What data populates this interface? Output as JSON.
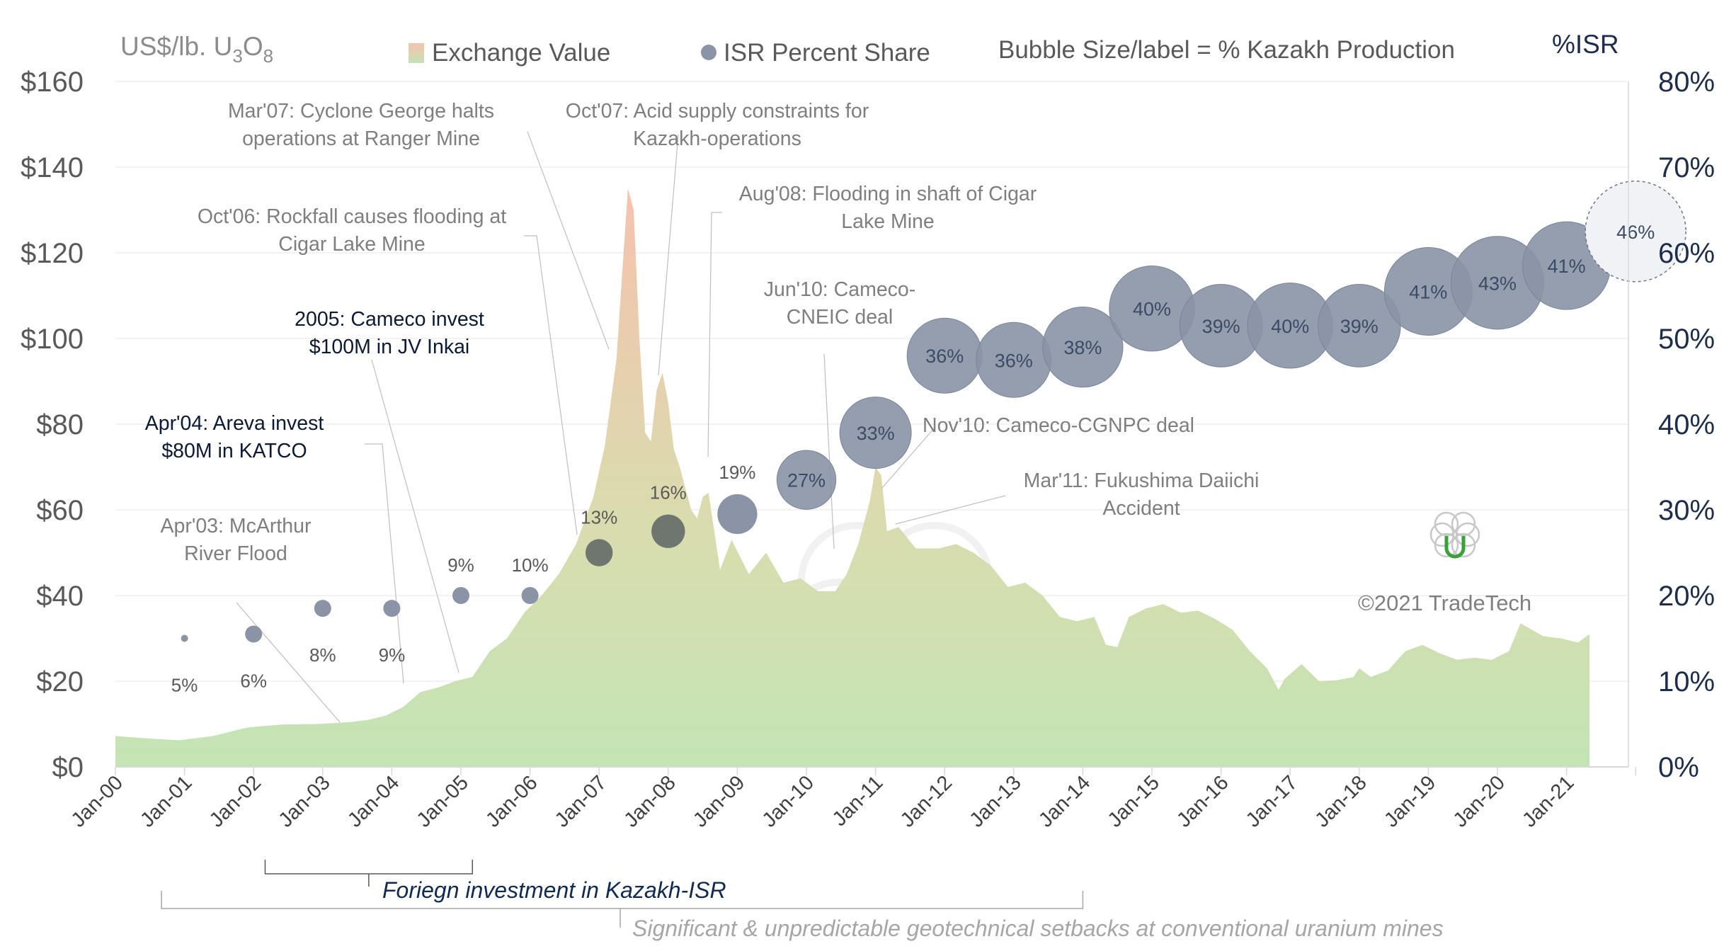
{
  "chart_data": {
    "type": "area",
    "y_axis_left": {
      "unit_prefix": "US$/lb. U",
      "sub1": "3",
      "mid": "O",
      "sub2": "8",
      "ylim": [
        0,
        160
      ],
      "ticks": [
        "$0",
        "$20",
        "$40",
        "$60",
        "$80",
        "$100",
        "$120",
        "$140",
        "$160"
      ]
    },
    "y_axis_right": {
      "label": "%ISR",
      "ylim": [
        0,
        80
      ],
      "ticks": [
        "0%",
        "10%",
        "20%",
        "30%",
        "40%",
        "50%",
        "60%",
        "70%",
        "80%"
      ]
    },
    "x_axis": {
      "start": "2000-01",
      "end": "2021-12",
      "ticks": [
        "Jan-00",
        "Jan-01",
        "Jan-02",
        "Jan-03",
        "Jan-04",
        "Jan-05",
        "Jan-06",
        "Jan-07",
        "Jan-08",
        "Jan-09",
        "Jan-10",
        "Jan-11",
        "Jan-12",
        "Jan-13",
        "Jan-14",
        "Jan-15",
        "Jan-16",
        "Jan-17",
        "Jan-18",
        "Jan-19",
        "Jan-20",
        "Jan-21"
      ]
    },
    "legend": {
      "exchange_value": "Exchange Value",
      "isr_share": "ISR Percent Share",
      "bubble_note": "Bubble Size/label = % Kazakh Production"
    },
    "colors": {
      "area_top": "#f6c2ae",
      "area_bottom": "#c3e4b4",
      "bubble": "#8a94a6",
      "bubble_stroke": "#6b7588",
      "grid": "#efefef",
      "axis_right": "#1f2d4d"
    },
    "exchange_value": [
      [
        "2000-01",
        7.2
      ],
      [
        "2000-06",
        6.7
      ],
      [
        "2000-12",
        6.2
      ],
      [
        "2001-06",
        7.2
      ],
      [
        "2001-12",
        9.2
      ],
      [
        "2002-06",
        9.9
      ],
      [
        "2002-12",
        10.0
      ],
      [
        "2003-06",
        10.5
      ],
      [
        "2003-09",
        11.0
      ],
      [
        "2003-12",
        12.0
      ],
      [
        "2004-03",
        14.0
      ],
      [
        "2004-06",
        17.5
      ],
      [
        "2004-09",
        18.5
      ],
      [
        "2004-12",
        20.0
      ],
      [
        "2005-03",
        21.0
      ],
      [
        "2005-06",
        27.0
      ],
      [
        "2005-09",
        30.0
      ],
      [
        "2005-12",
        36.0
      ],
      [
        "2006-03",
        40.0
      ],
      [
        "2006-06",
        45.0
      ],
      [
        "2006-09",
        52.0
      ],
      [
        "2006-12",
        63.0
      ],
      [
        "2007-02",
        75.0
      ],
      [
        "2007-04",
        95.0
      ],
      [
        "2007-05",
        115.0
      ],
      [
        "2007-06",
        135.0
      ],
      [
        "2007-07",
        130.0
      ],
      [
        "2007-08",
        100.0
      ],
      [
        "2007-09",
        78.0
      ],
      [
        "2007-10",
        76.0
      ],
      [
        "2007-11",
        88.0
      ],
      [
        "2007-12",
        92.0
      ],
      [
        "2008-01",
        85.0
      ],
      [
        "2008-02",
        74.0
      ],
      [
        "2008-03",
        70.0
      ],
      [
        "2008-04",
        65.0
      ],
      [
        "2008-05",
        60.0
      ],
      [
        "2008-06",
        58.0
      ],
      [
        "2008-07",
        63.0
      ],
      [
        "2008-08",
        64.0
      ],
      [
        "2008-09",
        55.0
      ],
      [
        "2008-10",
        46.0
      ],
      [
        "2008-12",
        53.0
      ],
      [
        "2009-03",
        45.0
      ],
      [
        "2009-06",
        50.0
      ],
      [
        "2009-09",
        43.0
      ],
      [
        "2009-12",
        44.0
      ],
      [
        "2010-03",
        41.0
      ],
      [
        "2010-06",
        41.0
      ],
      [
        "2010-08",
        45.0
      ],
      [
        "2010-10",
        52.0
      ],
      [
        "2010-12",
        62.0
      ],
      [
        "2011-01",
        70.0
      ],
      [
        "2011-02",
        68.0
      ],
      [
        "2011-03",
        55.0
      ],
      [
        "2011-05",
        56.0
      ],
      [
        "2011-08",
        51.0
      ],
      [
        "2011-12",
        51.0
      ],
      [
        "2012-03",
        52.0
      ],
      [
        "2012-06",
        50.0
      ],
      [
        "2012-09",
        47.0
      ],
      [
        "2012-12",
        42.0
      ],
      [
        "2013-03",
        43.0
      ],
      [
        "2013-06",
        40.0
      ],
      [
        "2013-09",
        35.0
      ],
      [
        "2013-12",
        34.0
      ],
      [
        "2014-03",
        35.0
      ],
      [
        "2014-05",
        28.5
      ],
      [
        "2014-07",
        28.0
      ],
      [
        "2014-09",
        35.0
      ],
      [
        "2014-12",
        37.0
      ],
      [
        "2015-03",
        38.0
      ],
      [
        "2015-06",
        36.0
      ],
      [
        "2015-09",
        36.5
      ],
      [
        "2015-12",
        34.5
      ],
      [
        "2016-03",
        32.0
      ],
      [
        "2016-06",
        27.0
      ],
      [
        "2016-09",
        23.0
      ],
      [
        "2016-11",
        18.0
      ],
      [
        "2016-12",
        20.5
      ],
      [
        "2017-03",
        24.0
      ],
      [
        "2017-06",
        20.0
      ],
      [
        "2017-09",
        20.2
      ],
      [
        "2017-12",
        21.0
      ],
      [
        "2018-01",
        23.0
      ],
      [
        "2018-03",
        21.0
      ],
      [
        "2018-06",
        22.5
      ],
      [
        "2018-09",
        27.0
      ],
      [
        "2018-12",
        28.5
      ],
      [
        "2019-03",
        26.5
      ],
      [
        "2019-06",
        25.0
      ],
      [
        "2019-09",
        25.5
      ],
      [
        "2019-12",
        25.0
      ],
      [
        "2020-03",
        27.0
      ],
      [
        "2020-05",
        33.5
      ],
      [
        "2020-09",
        30.5
      ],
      [
        "2020-12",
        30.0
      ],
      [
        "2021-03",
        29.0
      ],
      [
        "2021-05",
        31.0
      ]
    ],
    "isr_bubbles": [
      {
        "date": "2001-01",
        "isr": 15,
        "label": "5%",
        "kaz": 5,
        "pos": "below"
      },
      {
        "date": "2002-01",
        "isr": 15.5,
        "label": "6%",
        "kaz": 6,
        "pos": "below"
      },
      {
        "date": "2003-01",
        "isr": 18.5,
        "label": "8%",
        "kaz": 8,
        "pos": "below"
      },
      {
        "date": "2004-01",
        "isr": 18.5,
        "label": "9%",
        "kaz": 9,
        "pos": "below"
      },
      {
        "date": "2005-01",
        "isr": 20,
        "label": "9%",
        "kaz": 9,
        "pos": "above"
      },
      {
        "date": "2006-01",
        "isr": 20,
        "label": "10%",
        "kaz": 10,
        "pos": "above"
      },
      {
        "date": "2007-01",
        "isr": 25,
        "label": "13%",
        "kaz": 13,
        "pos": "above"
      },
      {
        "date": "2008-01",
        "isr": 27.5,
        "label": "16%",
        "kaz": 16,
        "pos": "above"
      },
      {
        "date": "2009-01",
        "isr": 29.5,
        "label": "19%",
        "kaz": 19,
        "pos": "above"
      },
      {
        "date": "2010-01",
        "isr": 33.5,
        "label": "27%",
        "kaz": 27,
        "pos": "inside"
      },
      {
        "date": "2011-01",
        "isr": 39,
        "label": "33%",
        "kaz": 33,
        "pos": "inside"
      },
      {
        "date": "2012-01",
        "isr": 48,
        "label": "36%",
        "kaz": 36,
        "pos": "inside"
      },
      {
        "date": "2013-01",
        "isr": 47.5,
        "label": "36%",
        "kaz": 36,
        "pos": "inside"
      },
      {
        "date": "2014-01",
        "isr": 49,
        "label": "38%",
        "kaz": 38,
        "pos": "inside"
      },
      {
        "date": "2015-01",
        "isr": 53.5,
        "label": "40%",
        "kaz": 40,
        "pos": "inside"
      },
      {
        "date": "2016-01",
        "isr": 51.5,
        "label": "39%",
        "kaz": 39,
        "pos": "inside"
      },
      {
        "date": "2017-01",
        "isr": 51.5,
        "label": "40%",
        "kaz": 40,
        "pos": "inside"
      },
      {
        "date": "2018-01",
        "isr": 51.5,
        "label": "39%",
        "kaz": 39,
        "pos": "inside"
      },
      {
        "date": "2019-01",
        "isr": 55.5,
        "label": "41%",
        "kaz": 41,
        "pos": "inside"
      },
      {
        "date": "2020-01",
        "isr": 56.5,
        "label": "43%",
        "kaz": 43,
        "pos": "inside"
      },
      {
        "date": "2021-01",
        "isr": 58.5,
        "label": "41%",
        "kaz": 41,
        "pos": "inside"
      },
      {
        "date": "2022-01",
        "isr": 62.5,
        "label": "46%",
        "kaz": 46,
        "pos": "inside",
        "projected": true
      }
    ],
    "annotations": [
      {
        "lines": [
          "Apr'03: McArthur",
          "River Flood"
        ],
        "style": "grey",
        "anchor_date": "2003-04",
        "anchor_value": 10
      },
      {
        "lines": [
          "Apr'04: Areva invest",
          "$80M in KATCO"
        ],
        "style": "dark",
        "anchor_date": "2004-05",
        "anchor_value": 17
      },
      {
        "lines": [
          "2005: Cameco invest",
          "$100M in JV Inkai"
        ],
        "style": "dark",
        "anchor_date": "2005-01",
        "anchor_value": 20
      },
      {
        "lines": [
          "Oct'06: Rockfall causes flooding at",
          "Cigar Lake Mine"
        ],
        "style": "grey",
        "anchor_date": "2006-10",
        "anchor_value": 62
      },
      {
        "lines": [
          "Mar'07: Cyclone George halts",
          "operations at Ranger Mine"
        ],
        "style": "grey",
        "anchor_date": "2007-03",
        "anchor_value": 95
      },
      {
        "lines": [
          "Oct'07: Acid supply constraints for",
          "Kazakh-operations"
        ],
        "style": "grey",
        "anchor_date": "2007-10",
        "anchor_value": 80
      },
      {
        "lines": [
          "Aug'08: Flooding in shaft of Cigar",
          "Lake Mine"
        ],
        "style": "grey",
        "anchor_date": "2008-08",
        "anchor_value": 65
      },
      {
        "lines": [
          "Jun'10: Cameco-",
          "CNEIC deal"
        ],
        "style": "grey",
        "anchor_date": "2010-06",
        "anchor_value": 41
      },
      {
        "lines": [
          "Nov'10: Cameco-CGNPC deal"
        ],
        "style": "grey",
        "anchor_date": "2010-12",
        "anchor_value": 62
      },
      {
        "lines": [
          "Mar'11: Fukushima Daiichi",
          "Accident"
        ],
        "style": "grey",
        "anchor_date": "2011-03",
        "anchor_value": 56
      }
    ],
    "brackets": [
      {
        "label": "Foriegn investment in Kazakh-ISR",
        "from": "2002-03",
        "to": "2005-03"
      },
      {
        "label": "Significant & unpredictable geotechnical setbacks at conventional uranium mines",
        "from": "2000-09",
        "to": "2014-01"
      }
    ],
    "copyright": "©2021 TradeTech"
  }
}
